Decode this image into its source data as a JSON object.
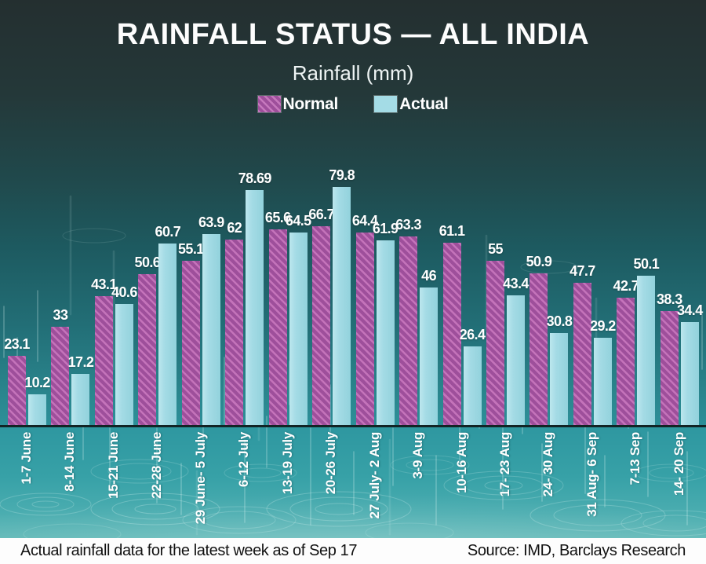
{
  "title": "RAINFALL STATUS — ALL INDIA",
  "subtitle": "Rainfall (mm)",
  "legend": {
    "normal": {
      "label": "Normal",
      "color": "#9e4f9b",
      "stripe_color": "#c678bd",
      "pattern": "diagonal-hatch"
    },
    "actual": {
      "label": "Actual",
      "color": "#a4dce6",
      "pattern": "solid"
    }
  },
  "footer": {
    "left": "Actual rainfall data for the latest week as of Sep 17",
    "right": "Source: IMD, Barclays Research"
  },
  "chart_data": {
    "type": "bar",
    "title": "RAINFALL STATUS — ALL INDIA",
    "ylabel": "Rainfall (mm)",
    "xlabel": "",
    "ylim": [
      0,
      85
    ],
    "grid": false,
    "legend_position": "top",
    "value_labels": true,
    "x_tick_rotation": 90,
    "categories": [
      "1-7 June",
      "8-14 June",
      "15-21 June",
      "22-28 June",
      "29 June- 5 July",
      "6-12 July",
      "13-19 July",
      "20-26 July",
      "27 July- 2 Aug",
      "3-9 Aug",
      "10-16 Aug",
      "17- 23 Aug",
      "24- 30 Aug",
      "31 Aug- 6 Sep",
      "7-13 Sep",
      "14- 20 Sep"
    ],
    "series": [
      {
        "name": "Normal",
        "values": [
          23.1,
          33,
          43.1,
          50.6,
          55.1,
          62,
          65.6,
          66.7,
          64.4,
          63.3,
          61.1,
          55,
          50.9,
          47.7,
          42.7,
          38.3
        ]
      },
      {
        "name": "Actual",
        "values": [
          10.2,
          17.2,
          40.6,
          60.7,
          63.9,
          78.69,
          64.5,
          79.8,
          61.9,
          46,
          26.4,
          43.4,
          30.8,
          29.2,
          50.1,
          34.4
        ]
      }
    ],
    "colors": {
      "background_top": "#242f30",
      "background_mid": "#1d5a60",
      "background_bottom": "#62b9b8",
      "axis_line": "#122425",
      "text": "#ffffff"
    }
  }
}
